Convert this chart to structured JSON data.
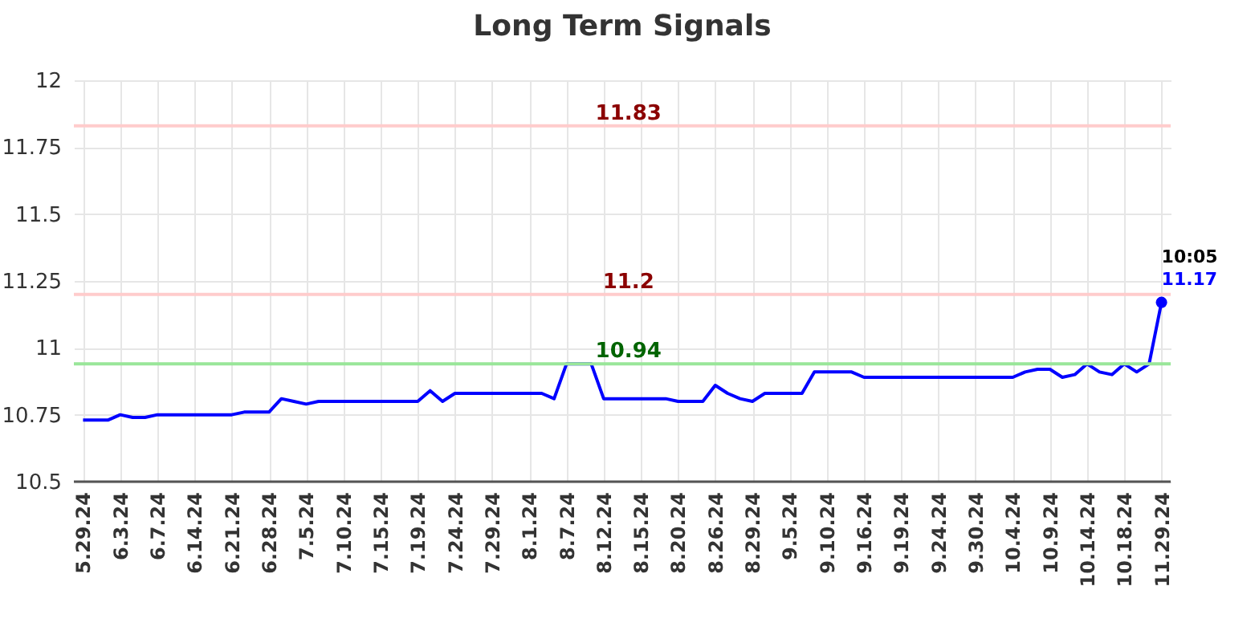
{
  "chart_data": {
    "type": "line",
    "title": "Long Term Signals",
    "categories": [
      "5.29.24",
      null,
      null,
      "6.3.24",
      null,
      null,
      "6.7.24",
      null,
      null,
      "6.14.24",
      null,
      null,
      "6.21.24",
      null,
      null,
      "6.28.24",
      null,
      null,
      "7.5.24",
      null,
      null,
      "7.10.24",
      null,
      null,
      "7.15.24",
      null,
      null,
      "7.19.24",
      null,
      null,
      "7.24.24",
      null,
      null,
      "7.29.24",
      null,
      null,
      "8.1.24",
      null,
      null,
      "8.7.24",
      null,
      null,
      "8.12.24",
      null,
      null,
      "8.15.24",
      null,
      null,
      "8.20.24",
      null,
      null,
      "8.26.24",
      null,
      null,
      "8.29.24",
      null,
      null,
      "9.5.24",
      null,
      null,
      "9.10.24",
      null,
      null,
      "9.16.24",
      null,
      null,
      "9.19.24",
      null,
      null,
      "9.24.24",
      null,
      null,
      "9.30.24",
      null,
      null,
      "10.4.24",
      null,
      null,
      "10.9.24",
      null,
      null,
      "10.14.24",
      null,
      null,
      "10.18.24",
      null,
      null,
      "11.29.24"
    ],
    "series": [
      {
        "color": "#0000ff",
        "values": [
          10.73,
          10.73,
          10.73,
          10.75,
          10.74,
          10.74,
          10.75,
          10.75,
          10.75,
          10.75,
          10.75,
          10.75,
          10.75,
          10.76,
          10.76,
          10.76,
          10.81,
          10.8,
          10.79,
          10.8,
          10.8,
          10.8,
          10.8,
          10.8,
          10.8,
          10.8,
          10.8,
          10.8,
          10.84,
          10.8,
          10.83,
          10.83,
          10.83,
          10.83,
          10.83,
          10.83,
          10.83,
          10.83,
          10.81,
          10.94,
          10.94,
          10.94,
          10.81,
          10.81,
          10.81,
          10.81,
          10.81,
          10.81,
          10.8,
          10.8,
          10.8,
          10.86,
          10.83,
          10.81,
          10.8,
          10.83,
          10.83,
          10.83,
          10.83,
          10.91,
          10.91,
          10.91,
          10.91,
          10.89,
          10.89,
          10.89,
          10.89,
          10.89,
          10.89,
          10.89,
          10.89,
          10.89,
          10.89,
          10.89,
          10.89,
          10.89,
          10.91,
          10.92,
          10.92,
          10.89,
          10.9,
          10.94,
          10.91,
          10.9,
          10.94,
          10.91,
          10.94,
          11.17
        ]
      }
    ],
    "ylim": [
      10.5,
      12
    ],
    "yticks": [
      10.5,
      10.75,
      11,
      11.25,
      11.5,
      11.75,
      12
    ],
    "grid": true,
    "marker": "none",
    "line_style": "solid",
    "ref_lines": [
      {
        "axis": "y",
        "value": 11.83,
        "label": "11.83",
        "color": "#ffcccc"
      },
      {
        "axis": "y",
        "value": 11.2,
        "label": "11.2",
        "color": "#ffcccc"
      },
      {
        "axis": "y",
        "value": 10.94,
        "label": "10.94",
        "color": "#99e699"
      }
    ],
    "annotations": [
      {
        "text": "10:05",
        "x": "11.29.24",
        "y": 11.17
      },
      {
        "text": "11.17",
        "x": "11.29.24",
        "y": 11.17
      }
    ]
  }
}
